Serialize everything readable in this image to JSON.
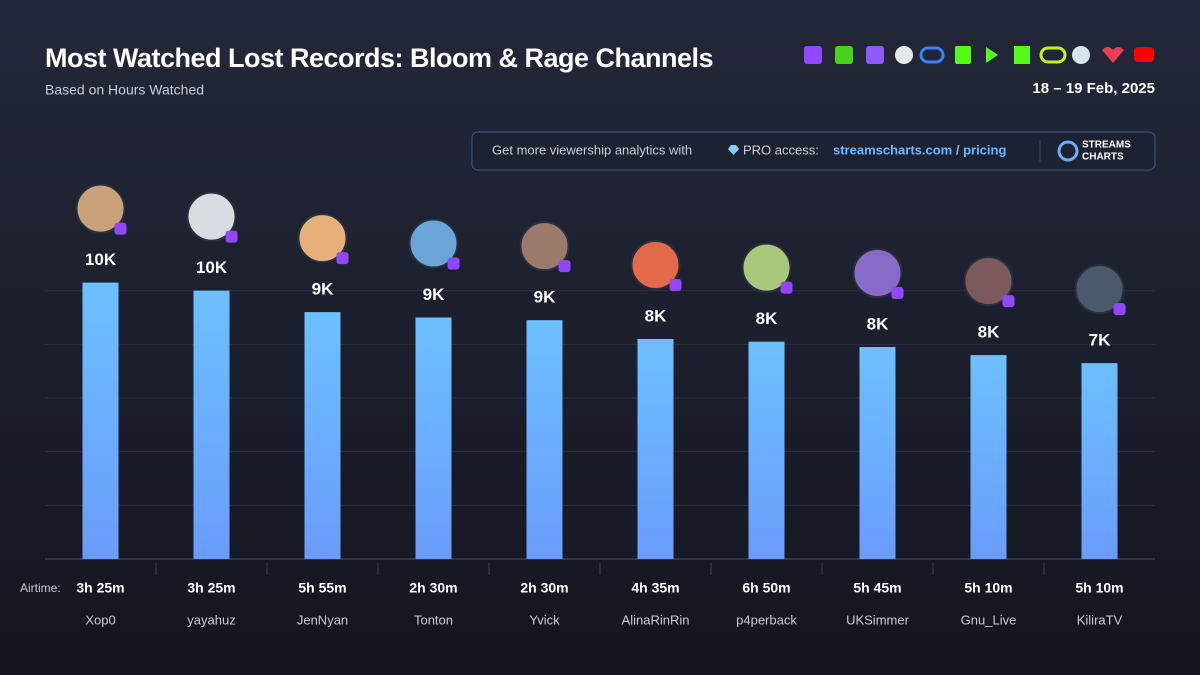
{
  "chart_data": {
    "type": "bar",
    "title": "Most Watched Lost Records: Bloom & Rage Channels",
    "subtitle": "Based on Hours Watched",
    "date": "18 – 19 Feb, 2025",
    "promo": {
      "text": "Get more viewership analytics with",
      "pro": "PRO access:",
      "link": "streamscharts.com / pricing",
      "brand": [
        "STREAMS",
        "CHARTS"
      ]
    },
    "airtime_label": "Airtime:",
    "categories": [
      "Xop0",
      "yayahuz",
      "JenNyan",
      "Tonton",
      "Yvick",
      "AlinaRinRin",
      "p4perback",
      "UKSimmer",
      "Gnu_Live",
      "KiliraTV"
    ],
    "airtime": [
      "3h 25m",
      "3h 25m",
      "5h 55m",
      "2h 30m",
      "2h 30m",
      "4h 35m",
      "6h 50m",
      "5h 45m",
      "5h 10m",
      "5h 10m"
    ],
    "values": [
      10.3,
      10,
      9.2,
      9,
      8.9,
      8.2,
      8.1,
      7.9,
      7.6,
      7.3
    ],
    "value_labels": [
      "10K",
      "10K",
      "9K",
      "9K",
      "9K",
      "8K",
      "8K",
      "8K",
      "8K",
      "7K"
    ],
    "color": "#6aaefc",
    "ylim": [
      0,
      12
    ],
    "yticks": [
      0,
      2,
      4,
      6,
      8,
      10
    ],
    "grid": true
  }
}
